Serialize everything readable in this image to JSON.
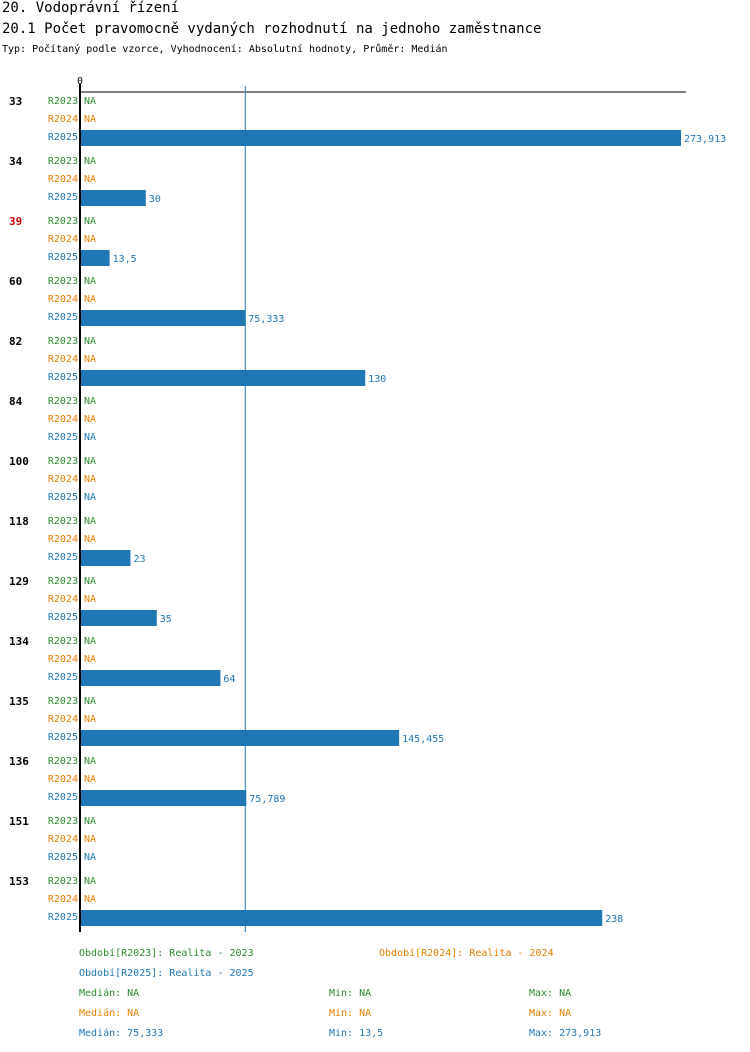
{
  "header": {
    "section": "20. Vodoprávní řízení",
    "title": "20.1 Počet pravomocně vydaných rozhodnutí na jednoho zaměstnance",
    "subtitle": "Typ: Počítaný podle vzorce, Vyhodnocení: Absolutní hodnoty, Průměr: Medián"
  },
  "chart_data": {
    "type": "bar",
    "orientation": "horizontal",
    "axis_zero_label": "0",
    "xlim": [
      0,
      273.913
    ],
    "reference_line": 75.333,
    "categories": [
      "33",
      "34",
      "39",
      "60",
      "82",
      "84",
      "100",
      "118",
      "129",
      "134",
      "135",
      "136",
      "151",
      "153"
    ],
    "highlight_category": "39",
    "na_label": "NA",
    "series": [
      {
        "name": "R2023",
        "color": "#2e8b2e",
        "values": [
          null,
          null,
          null,
          null,
          null,
          null,
          null,
          null,
          null,
          null,
          null,
          null,
          null,
          null
        ]
      },
      {
        "name": "R2024",
        "color": "#e67e00",
        "values": [
          null,
          null,
          null,
          null,
          null,
          null,
          null,
          null,
          null,
          null,
          null,
          null,
          null,
          null
        ]
      },
      {
        "name": "R2025",
        "color": "#1f77b4",
        "values": [
          273.913,
          30,
          13.5,
          75.333,
          130,
          null,
          null,
          23,
          35,
          64,
          145.455,
          75.789,
          null,
          238
        ],
        "labels": [
          "273,913",
          "30",
          "13,5",
          "75,333",
          "130",
          "NA",
          "NA",
          "23",
          "35",
          "64",
          "145,455",
          "75,789",
          "NA",
          "238"
        ]
      }
    ]
  },
  "legend": {
    "p2023": "Období[R2023]: Realita - 2023",
    "p2024": "Období[R2024]: Realita - 2024",
    "p2025": "Období[R2025]: Realita - 2025"
  },
  "stats": {
    "r2023": {
      "median": "Medián: NA",
      "min": "Min: NA",
      "max": "Max: NA"
    },
    "r2024": {
      "median": "Medián: NA",
      "min": "Min: NA",
      "max": "Max: NA"
    },
    "r2025": {
      "median": "Medián: 75,333",
      "min": "Min: 13,5",
      "max": "Max: 273,913"
    }
  },
  "colors": {
    "r2023": "#2e8b2e",
    "r2024": "#e67e00",
    "r2025": "#1f77b4",
    "highlight": "#cc0000",
    "bar": "#1f77b4"
  }
}
